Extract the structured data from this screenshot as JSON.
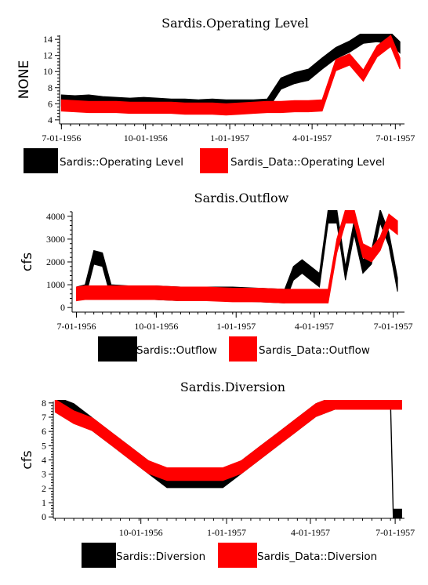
{
  "chart_data": [
    {
      "type": "area",
      "title": "Sardis.Operating Level",
      "xlabel": "",
      "ylabel": "NONE",
      "x_tick_labels": [
        "7-01-1956",
        "10-01-1956",
        "1-01-1957",
        "4-01-1957",
        "7-01-1957"
      ],
      "x_label_ticks": [
        0,
        92,
        184,
        274,
        365
      ],
      "y_ticks": [
        4,
        6,
        8,
        10,
        12,
        14
      ],
      "ylim": [
        3.5,
        14.5
      ],
      "x_range": [
        -2,
        375
      ],
      "band": 0.7,
      "x": [
        0,
        15,
        30,
        45,
        60,
        75,
        90,
        105,
        120,
        135,
        150,
        165,
        180,
        195,
        210,
        225,
        240,
        255,
        270,
        285,
        300,
        315,
        330,
        345,
        360,
        370
      ],
      "series": [
        {
          "name": "Sardis::Operating Level",
          "color": "#000000",
          "values": [
            6.4,
            6.3,
            6.4,
            6.2,
            6.1,
            6.0,
            6.1,
            6.0,
            5.9,
            5.9,
            5.8,
            5.9,
            5.8,
            5.8,
            5.8,
            5.9,
            8.5,
            9.2,
            9.6,
            11.0,
            12.3,
            13.1,
            14.2,
            14.4,
            14.1,
            13.0
          ]
        },
        {
          "name": "Sardis_Data::Operating Level",
          "color": "#ff0000",
          "values": [
            5.8,
            5.7,
            5.6,
            5.6,
            5.6,
            5.5,
            5.5,
            5.5,
            5.5,
            5.4,
            5.4,
            5.4,
            5.3,
            5.4,
            5.5,
            5.6,
            5.6,
            5.7,
            5.7,
            5.8,
            10.8,
            11.5,
            9.5,
            12.5,
            13.8,
            11.0
          ]
        }
      ],
      "legend_position": "bottom"
    },
    {
      "type": "area",
      "title": "Sardis.Outflow",
      "xlabel": "",
      "ylabel": "cfs",
      "x_tick_labels": [
        "7-01-1956",
        "10-01-1956",
        "1-01-1957",
        "4-01-1957",
        "7-01-1957"
      ],
      "x_label_ticks": [
        0,
        92,
        184,
        274,
        365
      ],
      "y_ticks": [
        0,
        1000,
        2000,
        3000,
        4000
      ],
      "ylim": [
        -200,
        4200
      ],
      "x_range": [
        -5,
        378
      ],
      "band": 300,
      "x": [
        0,
        10,
        20,
        30,
        40,
        60,
        90,
        120,
        150,
        180,
        210,
        240,
        250,
        260,
        270,
        280,
        290,
        300,
        310,
        320,
        330,
        340,
        350,
        360,
        370
      ],
      "series": [
        {
          "name": "Sardis::Outflow",
          "color": "#000000",
          "values": [
            600,
            700,
            2200,
            2100,
            700,
            650,
            650,
            600,
            600,
            600,
            550,
            500,
            1500,
            1800,
            1500,
            1200,
            4000,
            4000,
            1500,
            3500,
            1800,
            2200,
            4000,
            3000,
            1000
          ]
        },
        {
          "name": "Sardis_Data::Outflow",
          "color": "#ff0000",
          "values": [
            600,
            650,
            650,
            650,
            650,
            650,
            650,
            600,
            600,
            550,
            550,
            500,
            500,
            500,
            500,
            500,
            500,
            2700,
            4000,
            4000,
            2500,
            2300,
            2800,
            3800,
            3500
          ]
        }
      ],
      "legend_position": "bottom"
    },
    {
      "type": "area",
      "title": "Sardis.Diversion",
      "xlabel": "",
      "ylabel": "cfs",
      "x_tick_labels": [
        "10-01-1956",
        "1-01-1957",
        "4-01-1957",
        "7-01-1957"
      ],
      "x_label_ticks": [
        92,
        184,
        274,
        365
      ],
      "y_ticks": [
        0,
        1,
        2,
        3,
        4,
        5,
        6,
        7,
        8
      ],
      "ylim": [
        -0.1,
        8.1
      ],
      "x_range": [
        -2,
        375
      ],
      "band": 0.45,
      "x": [
        0,
        20,
        40,
        60,
        80,
        100,
        120,
        140,
        160,
        180,
        200,
        220,
        240,
        260,
        280,
        300,
        320,
        340,
        350,
        360,
        363,
        372
      ],
      "series": [
        {
          "name": "Sardis::Diversion",
          "color": "#000000",
          "values": [
            8,
            7.5,
            6.5,
            5.5,
            4.5,
            3.5,
            2.5,
            2.5,
            2.5,
            2.5,
            3.5,
            4.5,
            5.5,
            6.5,
            7.5,
            8,
            8,
            8,
            8,
            8,
            0.1,
            0.1
          ]
        },
        {
          "name": "Sardis_Data::Diversion",
          "color": "#ff0000",
          "values": [
            7.8,
            7.0,
            6.5,
            5.5,
            4.5,
            3.5,
            3.0,
            3.0,
            3.0,
            3.0,
            3.5,
            4.5,
            5.5,
            6.5,
            7.5,
            8,
            8,
            8,
            8,
            8,
            8,
            8
          ]
        }
      ],
      "legend_position": "bottom"
    }
  ]
}
